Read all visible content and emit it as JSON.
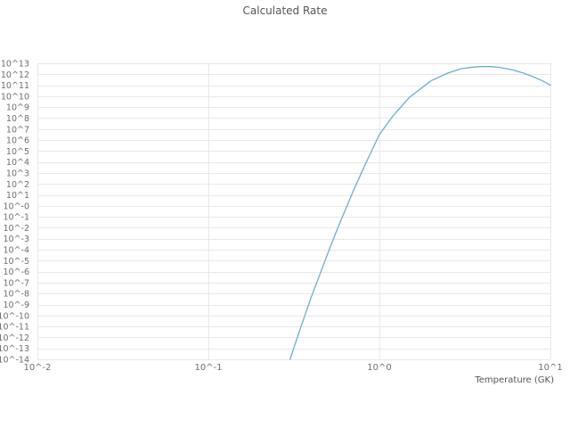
{
  "colors": {
    "line": "#6baed6",
    "grid": "#e8e8e8",
    "tick_text": "#6e6e6e",
    "label_text": "#555555",
    "background": "#ffffff"
  },
  "chart_data": {
    "type": "line",
    "title": "Calculated Rate",
    "xlabel": "Temperature (GK)",
    "ylabel": "",
    "x_scale": "log",
    "y_scale": "log",
    "xlim": [
      0.01,
      10
    ],
    "ylim": [
      1e-14,
      10000000000000.0
    ],
    "grid": true,
    "legend": "none",
    "x_ticks": [
      "10^-2",
      "10^-1",
      "10^0",
      "10^1"
    ],
    "y_ticks": [
      "10^13",
      "10^12",
      "10^11",
      "10^10",
      "10^9",
      "10^8",
      "10^7",
      "10^6",
      "10^5",
      "10^4",
      "10^3",
      "10^2",
      "10^1",
      "10^-0",
      "10^-1",
      "10^-2",
      "10^-3",
      "10^-4",
      "10^-5",
      "10^-6",
      "10^-7",
      "10^-8",
      "10^-9",
      "10^-10",
      "10^-11",
      "10^-12",
      "10^-13",
      "10^-14"
    ],
    "series": [
      {
        "name": "calculated-rate",
        "x": [
          0.3,
          0.32,
          0.35,
          0.4,
          0.45,
          0.5,
          0.55,
          0.6,
          0.65,
          0.7,
          0.8,
          0.9,
          1.0,
          1.2,
          1.5,
          2.0,
          2.5,
          3.0,
          3.5,
          4.0,
          4.5,
          5.0,
          6.0,
          7.0,
          8.0,
          9.0,
          10.0
        ],
        "y": [
          1e-14,
          2e-13,
          1.3e-11,
          5e-09,
          6.3e-07,
          5e-05,
          0.0022,
          0.063,
          1.2,
          20,
          2000,
          100000.0,
          3200000.0,
          160000000.0,
          7900000000.0,
          250000000000.0,
          1260000000000.0,
          3200000000000.0,
          4500000000000.0,
          5000000000000.0,
          5000000000000.0,
          4300000000000.0,
          2500000000000.0,
          1260000000000.0,
          560000000000.0,
          250000000000.0,
          100000000000.0
        ]
      }
    ]
  }
}
